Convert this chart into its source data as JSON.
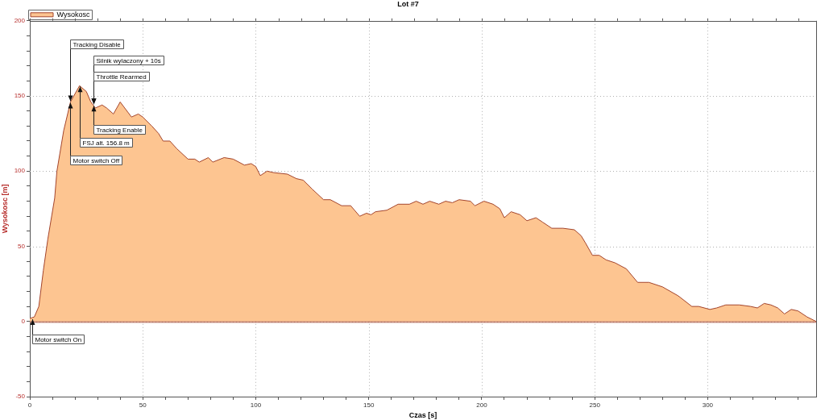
{
  "chart_data": {
    "type": "area",
    "title": "Lot #7",
    "xlabel": "Czas [s]",
    "ylabel": "Wysokosc [m]",
    "x": [
      0,
      2,
      4,
      6,
      8,
      11,
      12,
      15,
      18,
      22,
      25,
      27,
      29,
      32,
      34,
      37,
      40,
      42,
      45,
      48,
      50,
      54,
      57,
      59,
      62,
      65,
      70,
      73,
      75,
      79,
      81,
      86,
      90,
      95,
      98,
      100,
      102,
      105,
      108,
      114,
      118,
      121,
      125,
      130,
      133,
      138,
      142,
      146,
      149,
      151,
      153,
      158,
      163,
      168,
      171,
      174,
      177,
      181,
      184,
      187,
      190,
      195,
      197,
      201,
      205,
      208,
      210,
      213,
      217,
      220,
      224,
      227,
      231,
      236,
      241,
      244,
      246,
      249,
      252,
      255,
      259,
      264,
      269,
      274,
      280,
      287,
      293,
      296,
      301,
      304,
      308,
      314,
      319,
      322,
      325,
      328,
      331,
      334,
      337,
      340,
      344,
      348
    ],
    "series": [
      {
        "name": "Wysokosc",
        "color": "#fdc591",
        "values": [
          2,
          3,
          10,
          34,
          55,
          82,
          100,
          127,
          146,
          156.8,
          153,
          146,
          142,
          144,
          142,
          138,
          146,
          142,
          136,
          138,
          136,
          130,
          125,
          120,
          120,
          115,
          108,
          108,
          106,
          109,
          106,
          109,
          108,
          104,
          105,
          103,
          97,
          100,
          99,
          98,
          95,
          94,
          88,
          81,
          81,
          77,
          77,
          70,
          72,
          71,
          73,
          74,
          78,
          78,
          80,
          78,
          80,
          78,
          80,
          79,
          81,
          80,
          77,
          80,
          78,
          75,
          69,
          73,
          71,
          67,
          69,
          66,
          62,
          62,
          61,
          57,
          52,
          44,
          44,
          41,
          39,
          35,
          26,
          26,
          23,
          17,
          10,
          10,
          8,
          9,
          11,
          11,
          10,
          9,
          12,
          11,
          9,
          5,
          8,
          7,
          3,
          0
        ]
      }
    ],
    "xlim": [
      0,
      348
    ],
    "xticks": [
      0,
      {
        "value": 10,
        "label": null
      },
      {
        "value": 20,
        "label": null
      },
      {
        "value": 30,
        "label": null
      },
      {
        "value": 40,
        "label": null
      },
      50,
      {
        "value": 60,
        "label": null
      },
      {
        "value": 70,
        "label": null
      },
      {
        "value": 80,
        "label": null
      },
      {
        "value": 90,
        "label": null
      },
      100,
      {
        "value": 110,
        "label": null
      },
      {
        "value": 120,
        "label": null
      },
      {
        "value": 130,
        "label": null
      },
      {
        "value": 140,
        "label": null
      },
      150,
      {
        "value": 160,
        "label": null
      },
      {
        "value": 170,
        "label": null
      },
      {
        "value": 180,
        "label": null
      },
      {
        "value": 190,
        "label": null
      },
      200,
      {
        "value": 210,
        "label": null
      },
      {
        "value": 220,
        "label": null
      },
      {
        "value": 230,
        "label": null
      },
      {
        "value": 240,
        "label": null
      },
      250,
      {
        "value": 260,
        "label": null
      },
      {
        "value": 270,
        "label": null
      },
      {
        "value": 280,
        "label": null
      },
      {
        "value": 290,
        "label": null
      },
      300,
      {
        "value": 310,
        "label": null
      },
      {
        "value": 320,
        "label": null
      },
      {
        "value": 330,
        "label": null
      },
      {
        "value": 340,
        "label": null
      }
    ],
    "ylim": [
      -50,
      200
    ],
    "yticks": [
      -50,
      {
        "value": -40,
        "label": null
      },
      {
        "value": -30,
        "label": null
      },
      {
        "value": -20,
        "label": null
      },
      {
        "value": -10,
        "label": null
      },
      0,
      {
        "value": 10,
        "label": null
      },
      {
        "value": 20,
        "label": null
      },
      {
        "value": 30,
        "label": null
      },
      {
        "value": 40,
        "label": null
      },
      50,
      {
        "value": 60,
        "label": null
      },
      {
        "value": 70,
        "label": null
      },
      {
        "value": 80,
        "label": null
      },
      {
        "value": 90,
        "label": null
      },
      100,
      {
        "value": 110,
        "label": null
      },
      {
        "value": 120,
        "label": null
      },
      {
        "value": 130,
        "label": null
      },
      {
        "value": 140,
        "label": null
      },
      150,
      {
        "value": 160,
        "label": null
      },
      {
        "value": 170,
        "label": null
      },
      {
        "value": 180,
        "label": null
      },
      {
        "value": 190,
        "label": null
      },
      200
    ],
    "grid": true,
    "legend": "top left",
    "annotations": [
      {
        "text": "Motor switch On",
        "x": 1,
        "y": 2
      },
      {
        "text": "Tracking Disable",
        "x": 18,
        "y": 146
      },
      {
        "text": "Motor switch Off",
        "x": 18,
        "y": 146
      },
      {
        "text": "FSJ alt. 156.8 m",
        "x": 22,
        "y": 156.8
      },
      {
        "text": "Silnik wylaczony + 10s",
        "x": 28,
        "y": 144
      },
      {
        "text": "Throttle Rearmed",
        "x": 28,
        "y": 144
      },
      {
        "text": "Tracking Enable",
        "x": 28,
        "y": 144
      }
    ]
  }
}
